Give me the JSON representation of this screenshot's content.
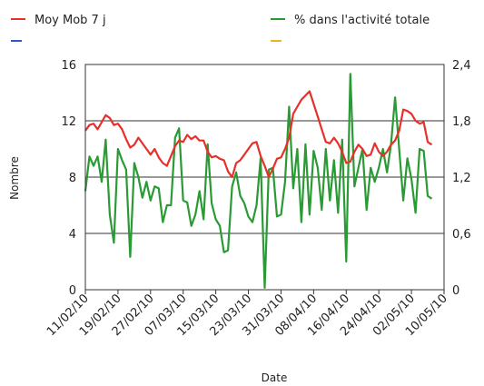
{
  "chart_data": {
    "type": "line",
    "title": "",
    "xlabel": "Date",
    "ylabel": "Nombre",
    "y2label": "",
    "ylim": [
      0,
      16
    ],
    "y2lim": [
      0,
      2.4
    ],
    "yticks": [
      0,
      4,
      8,
      12,
      16
    ],
    "y2ticks": [
      "0",
      "0,6",
      "1,2",
      "1,8",
      "2,4"
    ],
    "grid": "horizontal",
    "legend_position": "top",
    "x_start": "2010-02-11",
    "x_end": "2010-05-10",
    "xticks": [
      "11/02/10",
      "19/02/10",
      "27/02/10",
      "07/03/10",
      "15/03/10",
      "23/03/10",
      "31/03/10",
      "08/04/10",
      "16/04/10",
      "24/04/10",
      "02/05/10",
      "10/05/10"
    ],
    "legend": [
      {
        "name": "Moy Mob 7 j",
        "color": "#e8302a"
      },
      {
        "name": "% dans l'activité totale",
        "color": "#2a9a34"
      },
      {
        "name": "",
        "color": "#2b57c8"
      },
      {
        "name": "",
        "color": "#f2b21b"
      }
    ],
    "series": [
      {
        "name": "Moy Mob 7 j",
        "axis": "left",
        "color": "#e8302a",
        "values": [
          11.3,
          11.7,
          11.8,
          11.4,
          11.9,
          12.4,
          12.2,
          11.7,
          11.8,
          11.4,
          10.7,
          10.1,
          10.3,
          10.8,
          10.4,
          10.0,
          9.6,
          10.0,
          9.4,
          9.0,
          8.8,
          9.5,
          10.2,
          10.6,
          10.5,
          11.0,
          10.7,
          10.9,
          10.6,
          10.6,
          9.8,
          9.4,
          9.5,
          9.3,
          9.2,
          8.4,
          8.0,
          9.0,
          9.2,
          9.6,
          10.0,
          10.4,
          10.5,
          9.5,
          8.8,
          8.0,
          8.6,
          9.3,
          9.4,
          10.0,
          10.8,
          12.5,
          13.0,
          13.5,
          13.8,
          14.1,
          13.2,
          12.3,
          11.4,
          10.5,
          10.4,
          10.8,
          10.4,
          9.8,
          9.0,
          9.1,
          9.8,
          10.3,
          10.0,
          9.5,
          9.6,
          10.4,
          9.8,
          9.5,
          9.8,
          10.3,
          10.6,
          11.3,
          12.8,
          12.7,
          12.5,
          12.0,
          11.8,
          11.9,
          10.5,
          10.3
        ]
      },
      {
        "name": "% dans l'activité totale",
        "axis": "right",
        "color": "#2a9a34",
        "values": [
          1.05,
          1.42,
          1.32,
          1.42,
          1.15,
          1.6,
          0.8,
          0.5,
          1.5,
          1.38,
          1.28,
          0.35,
          1.35,
          1.2,
          0.98,
          1.15,
          0.95,
          1.1,
          1.08,
          0.72,
          0.9,
          0.9,
          1.62,
          1.72,
          0.95,
          0.93,
          0.68,
          0.8,
          1.05,
          0.75,
          1.55,
          0.92,
          0.75,
          0.68,
          0.4,
          0.42,
          1.1,
          1.25,
          1.0,
          0.92,
          0.78,
          0.72,
          0.9,
          1.4,
          0.02,
          1.28,
          1.3,
          0.78,
          0.8,
          1.15,
          1.95,
          1.08,
          1.5,
          0.72,
          1.55,
          0.8,
          1.48,
          1.3,
          0.85,
          1.5,
          0.95,
          1.38,
          0.82,
          1.6,
          0.3,
          2.3,
          1.1,
          1.3,
          1.5,
          0.85,
          1.3,
          1.15,
          1.3,
          1.5,
          1.25,
          1.55,
          2.05,
          1.5,
          0.95,
          1.4,
          1.18,
          0.82,
          1.5,
          1.48,
          1.0,
          0.97
        ]
      }
    ]
  }
}
